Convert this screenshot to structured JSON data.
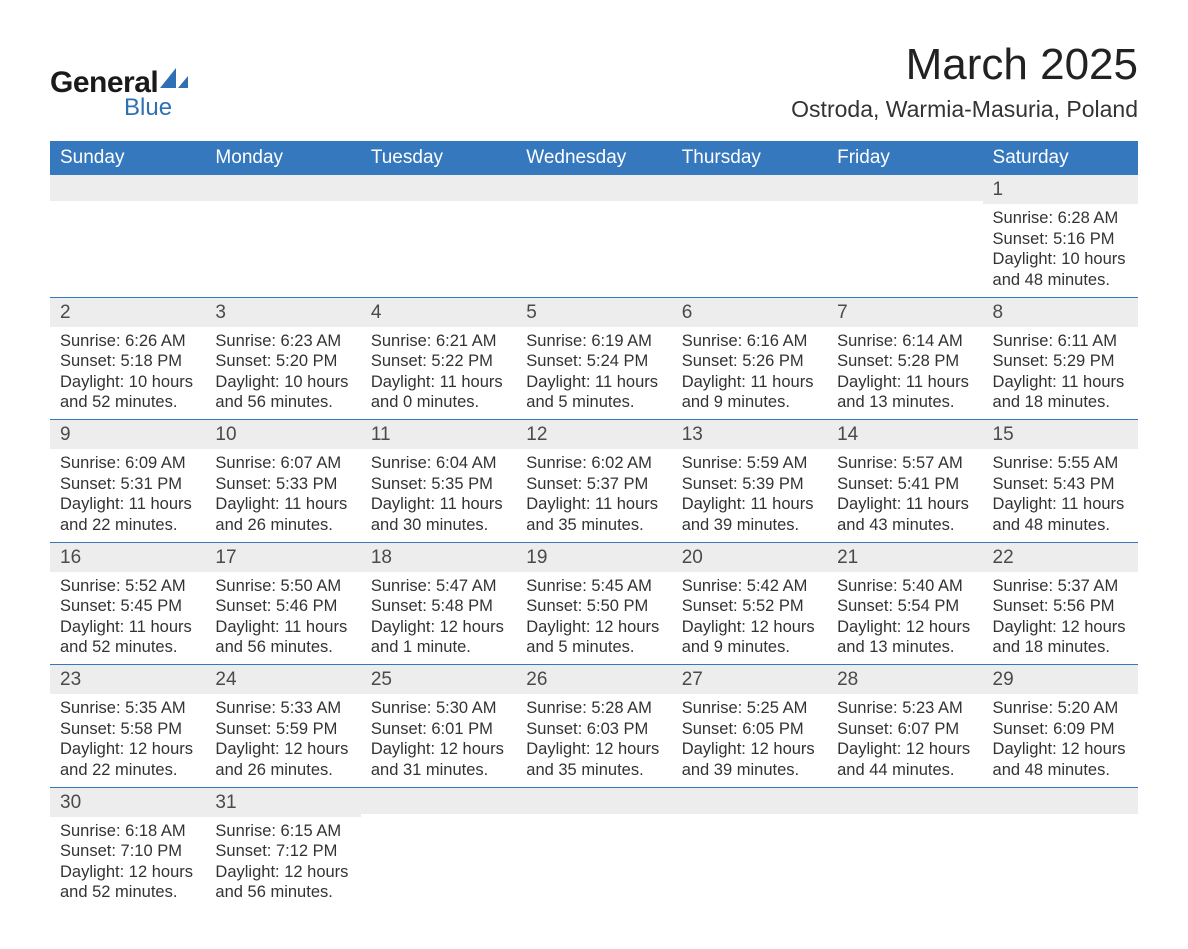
{
  "brand": {
    "general": "General",
    "blue": "Blue",
    "accent_color": "#2f6fb3"
  },
  "title": "March 2025",
  "location": "Ostroda, Warmia-Masuria, Poland",
  "colors": {
    "header_bg": "#3578bd",
    "header_text": "#ffffff",
    "daynum_bg": "#ededed",
    "row_border": "#3578bd",
    "body_text": "#333333"
  },
  "typography": {
    "title_fontsize": 44,
    "location_fontsize": 23,
    "weekday_fontsize": 19,
    "daynum_fontsize": 19,
    "body_fontsize": 16.5
  },
  "weekdays": [
    "Sunday",
    "Monday",
    "Tuesday",
    "Wednesday",
    "Thursday",
    "Friday",
    "Saturday"
  ],
  "labels": {
    "sunrise": "Sunrise",
    "sunset": "Sunset",
    "daylight": "Daylight"
  },
  "weeks": [
    [
      null,
      null,
      null,
      null,
      null,
      null,
      {
        "d": "1",
        "sr": "6:28 AM",
        "ss": "5:16 PM",
        "dl": "10 hours and 48 minutes."
      }
    ],
    [
      {
        "d": "2",
        "sr": "6:26 AM",
        "ss": "5:18 PM",
        "dl": "10 hours and 52 minutes."
      },
      {
        "d": "3",
        "sr": "6:23 AM",
        "ss": "5:20 PM",
        "dl": "10 hours and 56 minutes."
      },
      {
        "d": "4",
        "sr": "6:21 AM",
        "ss": "5:22 PM",
        "dl": "11 hours and 0 minutes."
      },
      {
        "d": "5",
        "sr": "6:19 AM",
        "ss": "5:24 PM",
        "dl": "11 hours and 5 minutes."
      },
      {
        "d": "6",
        "sr": "6:16 AM",
        "ss": "5:26 PM",
        "dl": "11 hours and 9 minutes."
      },
      {
        "d": "7",
        "sr": "6:14 AM",
        "ss": "5:28 PM",
        "dl": "11 hours and 13 minutes."
      },
      {
        "d": "8",
        "sr": "6:11 AM",
        "ss": "5:29 PM",
        "dl": "11 hours and 18 minutes."
      }
    ],
    [
      {
        "d": "9",
        "sr": "6:09 AM",
        "ss": "5:31 PM",
        "dl": "11 hours and 22 minutes."
      },
      {
        "d": "10",
        "sr": "6:07 AM",
        "ss": "5:33 PM",
        "dl": "11 hours and 26 minutes."
      },
      {
        "d": "11",
        "sr": "6:04 AM",
        "ss": "5:35 PM",
        "dl": "11 hours and 30 minutes."
      },
      {
        "d": "12",
        "sr": "6:02 AM",
        "ss": "5:37 PM",
        "dl": "11 hours and 35 minutes."
      },
      {
        "d": "13",
        "sr": "5:59 AM",
        "ss": "5:39 PM",
        "dl": "11 hours and 39 minutes."
      },
      {
        "d": "14",
        "sr": "5:57 AM",
        "ss": "5:41 PM",
        "dl": "11 hours and 43 minutes."
      },
      {
        "d": "15",
        "sr": "5:55 AM",
        "ss": "5:43 PM",
        "dl": "11 hours and 48 minutes."
      }
    ],
    [
      {
        "d": "16",
        "sr": "5:52 AM",
        "ss": "5:45 PM",
        "dl": "11 hours and 52 minutes."
      },
      {
        "d": "17",
        "sr": "5:50 AM",
        "ss": "5:46 PM",
        "dl": "11 hours and 56 minutes."
      },
      {
        "d": "18",
        "sr": "5:47 AM",
        "ss": "5:48 PM",
        "dl": "12 hours and 1 minute."
      },
      {
        "d": "19",
        "sr": "5:45 AM",
        "ss": "5:50 PM",
        "dl": "12 hours and 5 minutes."
      },
      {
        "d": "20",
        "sr": "5:42 AM",
        "ss": "5:52 PM",
        "dl": "12 hours and 9 minutes."
      },
      {
        "d": "21",
        "sr": "5:40 AM",
        "ss": "5:54 PM",
        "dl": "12 hours and 13 minutes."
      },
      {
        "d": "22",
        "sr": "5:37 AM",
        "ss": "5:56 PM",
        "dl": "12 hours and 18 minutes."
      }
    ],
    [
      {
        "d": "23",
        "sr": "5:35 AM",
        "ss": "5:58 PM",
        "dl": "12 hours and 22 minutes."
      },
      {
        "d": "24",
        "sr": "5:33 AM",
        "ss": "5:59 PM",
        "dl": "12 hours and 26 minutes."
      },
      {
        "d": "25",
        "sr": "5:30 AM",
        "ss": "6:01 PM",
        "dl": "12 hours and 31 minutes."
      },
      {
        "d": "26",
        "sr": "5:28 AM",
        "ss": "6:03 PM",
        "dl": "12 hours and 35 minutes."
      },
      {
        "d": "27",
        "sr": "5:25 AM",
        "ss": "6:05 PM",
        "dl": "12 hours and 39 minutes."
      },
      {
        "d": "28",
        "sr": "5:23 AM",
        "ss": "6:07 PM",
        "dl": "12 hours and 44 minutes."
      },
      {
        "d": "29",
        "sr": "5:20 AM",
        "ss": "6:09 PM",
        "dl": "12 hours and 48 minutes."
      }
    ],
    [
      {
        "d": "30",
        "sr": "6:18 AM",
        "ss": "7:10 PM",
        "dl": "12 hours and 52 minutes."
      },
      {
        "d": "31",
        "sr": "6:15 AM",
        "ss": "7:12 PM",
        "dl": "12 hours and 56 minutes."
      },
      null,
      null,
      null,
      null,
      null
    ]
  ]
}
